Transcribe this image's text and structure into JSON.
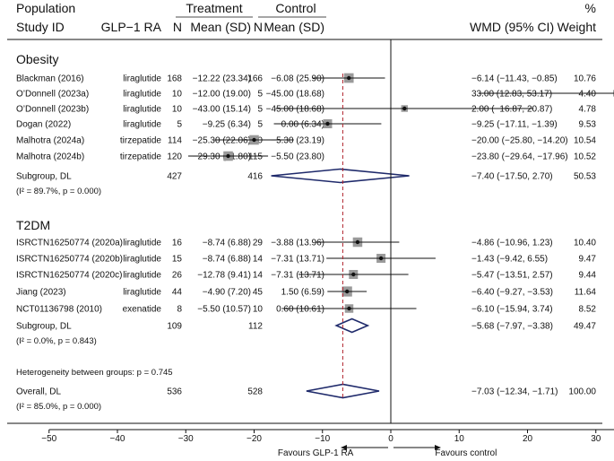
{
  "chart_data": {
    "type": "forest",
    "header": {
      "group_treatment": "Treatment",
      "group_control": "Control",
      "group_pct": "%",
      "col_population": "Population",
      "col_study": "Study ID",
      "col_drug": "GLP−1 RA",
      "col_n_t": "N",
      "col_mean_t": "Mean (SD)",
      "col_n_c": "N",
      "col_mean_c": "Mean (SD)",
      "col_effect": "WMD (95% CI)",
      "col_weight": "Weight"
    },
    "xaxis": {
      "ticks": [
        -50,
        -40,
        -30,
        -20,
        -10,
        0,
        10,
        20,
        30,
        40,
        50
      ],
      "labels": [
        "−50",
        "−40",
        "−30",
        "−20",
        "−10",
        "0",
        "10",
        "20",
        "30",
        "40",
        "50"
      ],
      "left_label": "Favours GLP-1 RA",
      "right_label": "Favours control"
    },
    "overall_wmd": -7.03,
    "groups": [
      {
        "title": "Obesity",
        "studies": [
          {
            "study": "Blackman (2016)",
            "drug": "liraglutide",
            "n_t": "168",
            "mean_t": "−12.22 (23.34)",
            "n_c": "166",
            "mean_c": "−6.08 (25.90)",
            "wmd": -6.14,
            "lo": -11.43,
            "hi": -0.85,
            "wmd_text": "−6.14 (−11.43, −0.85)",
            "weight": 10.76,
            "weight_text": "10.76"
          },
          {
            "study": "O’Donnell (2023a)",
            "drug": "liraglutide",
            "n_t": "10",
            "mean_t": "−12.00 (19.00)",
            "n_c": "5",
            "mean_c": "−45.00 (18.68)",
            "wmd": 33.0,
            "lo": 12.83,
            "hi": 53.17,
            "wmd_text": "33.00 (12.83, 53.17)",
            "weight": 4.4,
            "weight_text": "4.40"
          },
          {
            "study": "O’Donnell (2023b)",
            "drug": "liraglutide",
            "n_t": "10",
            "mean_t": "−43.00 (15.14)",
            "n_c": "5",
            "mean_c": "−45.00 (18.68)",
            "wmd": 2.0,
            "lo": -16.87,
            "hi": 20.87,
            "wmd_text": "2.00 (−16.87, 20.87)",
            "weight": 4.78,
            "weight_text": "4.78"
          },
          {
            "study": "Dogan (2022)",
            "drug": "liraglutide",
            "n_t": "5",
            "mean_t": "−9.25 (6.34)",
            "n_c": "5",
            "mean_c": "0.00 (6.34)",
            "wmd": -9.25,
            "lo": -17.11,
            "hi": -1.39,
            "wmd_text": "−9.25 (−17.11, −1.39)",
            "weight": 9.53,
            "weight_text": "9.53"
          },
          {
            "study": "Malhotra (2024a)",
            "drug": "tirzepatide",
            "n_t": "114",
            "mean_t": "−25.30 (22.06)",
            "n_c": "120",
            "mean_c": "−5.30 (23.19)",
            "wmd": -20.0,
            "lo": -25.8,
            "hi": -14.2,
            "wmd_text": "−20.00 (−25.80, −14.20)",
            "weight": 10.54,
            "weight_text": "10.54"
          },
          {
            "study": "Malhotra (2024b)",
            "drug": "tirzepatide",
            "n_t": "120",
            "mean_t": "−29.30 (21.80)",
            "n_c": "115",
            "mean_c": "−5.50 (23.80)",
            "wmd": -23.8,
            "lo": -29.64,
            "hi": -17.96,
            "wmd_text": "−23.80 (−29.64, −17.96)",
            "weight": 10.52,
            "weight_text": "10.52"
          }
        ],
        "subgroup": {
          "label": "Subgroup, DL",
          "n_t": "427",
          "n_c": "416",
          "wmd": -7.4,
          "lo": -17.5,
          "hi": 2.7,
          "wmd_text": "−7.40 (−17.50, 2.70)",
          "weight_text": "50.53"
        },
        "heterogeneity": "(I² = 89.7%, p = 0.000)"
      },
      {
        "title": "T2DM",
        "studies": [
          {
            "study": "ISRCTN16250774 (2020a)",
            "drug": "liraglutide",
            "n_t": "16",
            "mean_t": "−8.74 (6.88)",
            "n_c": "29",
            "mean_c": "−3.88 (13.96)",
            "wmd": -4.86,
            "lo": -10.96,
            "hi": 1.23,
            "wmd_text": "−4.86 (−10.96, 1.23)",
            "weight": 10.4,
            "weight_text": "10.40"
          },
          {
            "study": "ISRCTN16250774 (2020b)",
            "drug": "liraglutide",
            "n_t": "15",
            "mean_t": "−8.74 (6.88)",
            "n_c": "14",
            "mean_c": "−7.31 (13.71)",
            "wmd": -1.43,
            "lo": -9.42,
            "hi": 6.55,
            "wmd_text": "−1.43 (−9.42, 6.55)",
            "weight": 9.47,
            "weight_text": "9.47"
          },
          {
            "study": "ISRCTN16250774 (2020c)",
            "drug": "liraglutide",
            "n_t": "26",
            "mean_t": "−12.78 (9.41)",
            "n_c": "14",
            "mean_c": "−7.31 (13.71)",
            "wmd": -5.47,
            "lo": -13.51,
            "hi": 2.57,
            "wmd_text": "−5.47 (−13.51, 2.57)",
            "weight": 9.44,
            "weight_text": "9.44"
          },
          {
            "study": "Jiang (2023)",
            "drug": "liraglutide",
            "n_t": "44",
            "mean_t": "−4.90 (7.20)",
            "n_c": "45",
            "mean_c": "1.50 (6.59)",
            "wmd": -6.4,
            "lo": -9.27,
            "hi": -3.53,
            "wmd_text": "−6.40 (−9.27, −3.53)",
            "weight": 11.64,
            "weight_text": "11.64"
          },
          {
            "study": "NCT01136798 (2010)",
            "drug": "exenatide",
            "n_t": "8",
            "mean_t": "−5.50 (10.57)",
            "n_c": "10",
            "mean_c": "0.60 (10.61)",
            "wmd": -6.1,
            "lo": -15.94,
            "hi": 3.74,
            "wmd_text": "−6.10 (−15.94, 3.74)",
            "weight": 8.52,
            "weight_text": "8.52"
          }
        ],
        "subgroup": {
          "label": "Subgroup, DL",
          "n_t": "109",
          "n_c": "112",
          "wmd": -5.68,
          "lo": -7.97,
          "hi": -3.38,
          "wmd_text": "−5.68 (−7.97, −3.38)",
          "weight_text": "49.47"
        },
        "heterogeneity": "(I² = 0.0%, p = 0.843)"
      }
    ],
    "between_groups": "Heterogeneity between groups: p = 0.745",
    "overall": {
      "label": "Overall, DL",
      "n_t": "536",
      "n_c": "528",
      "wmd": -7.03,
      "lo": -12.34,
      "hi": -1.71,
      "wmd_text": "−7.03 (−12.34, −1.71)",
      "weight_text": "100.00"
    },
    "overall_heterogeneity": "(I² = 85.0%, p = 0.000)"
  },
  "colors": {
    "ink": "#111111",
    "diamond": "#1f2a6b",
    "overall_line": "#b0202a",
    "box": "#9a9a9a",
    "point": "#111111"
  }
}
